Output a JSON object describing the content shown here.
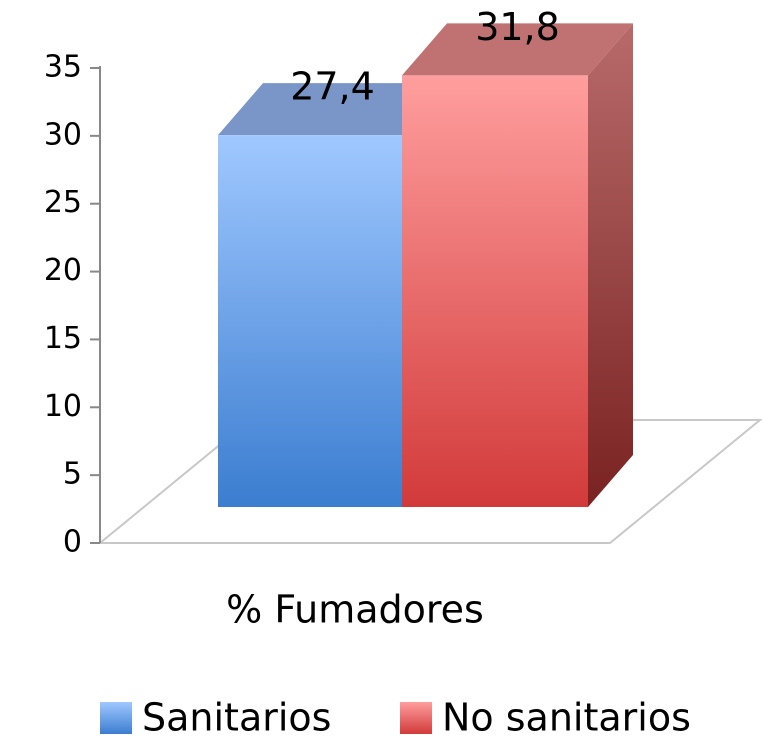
{
  "chart_data": {
    "type": "bar3d",
    "categories": [
      "% Fumadores"
    ],
    "series": [
      {
        "name": "Sanitarios",
        "color": "#4a86d8",
        "values": [
          27.4
        ],
        "value_labels": [
          "27,4"
        ]
      },
      {
        "name": "No sanitarios",
        "color": "#e05050",
        "values": [
          31.8
        ],
        "value_labels": [
          "31,8"
        ]
      }
    ],
    "ylim": [
      0,
      35
    ],
    "yticks": [
      0,
      5,
      10,
      15,
      20,
      25,
      30,
      35
    ]
  }
}
